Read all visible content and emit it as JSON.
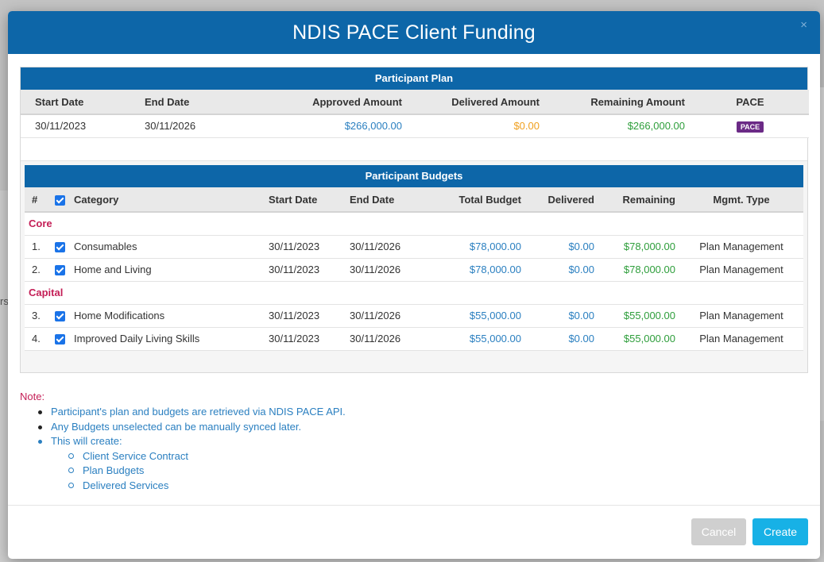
{
  "modal": {
    "title": "NDIS PACE Client Funding",
    "close_glyph": "×"
  },
  "background": {
    "left_text": "rs"
  },
  "plan": {
    "section_title": "Participant Plan",
    "headers": [
      "Start Date",
      "End Date",
      "Approved Amount",
      "Delivered Amount",
      "Remaining Amount",
      "PACE"
    ],
    "row": {
      "start_date": "30/11/2023",
      "end_date": "30/11/2026",
      "approved": "$266,000.00",
      "delivered": "$0.00",
      "remaining": "$266,000.00",
      "badge": "PACE"
    }
  },
  "budgets": {
    "section_title": "Participant Budgets",
    "headers": [
      "#",
      "Category",
      "Start Date",
      "End Date",
      "Total Budget",
      "Delivered",
      "Remaining",
      "Mgmt. Type"
    ],
    "groups": [
      {
        "name": "Core",
        "rows": [
          {
            "num": "1.",
            "category": "Consumables",
            "start": "30/11/2023",
            "end": "30/11/2026",
            "total": "$78,000.00",
            "delivered": "$0.00",
            "remaining": "$78,000.00",
            "mgmt": "Plan Management",
            "checked": true
          },
          {
            "num": "2.",
            "category": "Home and Living",
            "start": "30/11/2023",
            "end": "30/11/2026",
            "total": "$78,000.00",
            "delivered": "$0.00",
            "remaining": "$78,000.00",
            "mgmt": "Plan Management",
            "checked": true
          }
        ]
      },
      {
        "name": "Capital",
        "rows": [
          {
            "num": "3.",
            "category": "Home Modifications",
            "start": "30/11/2023",
            "end": "30/11/2026",
            "total": "$55,000.00",
            "delivered": "$0.00",
            "remaining": "$55,000.00",
            "mgmt": "Plan Management",
            "checked": true
          },
          {
            "num": "4.",
            "category": "Improved Daily Living Skills",
            "start": "30/11/2023",
            "end": "30/11/2026",
            "total": "$55,000.00",
            "delivered": "$0.00",
            "remaining": "$55,000.00",
            "mgmt": "Plan Management",
            "checked": true
          }
        ]
      }
    ]
  },
  "note": {
    "label": "Note:",
    "items": [
      "Participant's plan and budgets are retrieved via NDIS PACE API.",
      "Any Budgets unselected can be manually synced later.",
      "This will create:"
    ],
    "sub_items": [
      "Client Service Contract",
      "Plan Budgets",
      "Delivered Services"
    ]
  },
  "footer": {
    "cancel_label": "Cancel",
    "create_label": "Create"
  },
  "colors": {
    "header_blue": "#0d66a8",
    "money_blue": "#2a7fc0",
    "money_orange": "#f0a020",
    "money_green": "#2e9e3b",
    "group_red": "#c41e56",
    "badge_purple": "#6b2a86",
    "create_cyan": "#17b1e6"
  }
}
